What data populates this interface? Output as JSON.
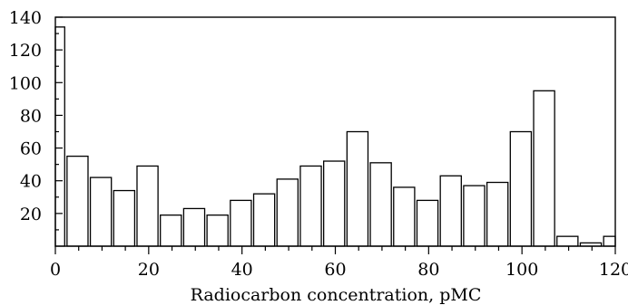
{
  "chart_data": {
    "type": "bar",
    "title": "",
    "xlabel": "Radiocarbon concentration, pMC",
    "ylabel": "",
    "xlim": [
      0,
      120
    ],
    "ylim": [
      0,
      140
    ],
    "grid": false,
    "bin_width": 5,
    "bins": [
      {
        "x0": 0,
        "x1": 2,
        "value": 134
      },
      {
        "x0": 2.5,
        "x1": 7,
        "value": 55
      },
      {
        "x0": 7.5,
        "x1": 12,
        "value": 42
      },
      {
        "x0": 12.5,
        "x1": 17,
        "value": 34
      },
      {
        "x0": 17.5,
        "x1": 22,
        "value": 49
      },
      {
        "x0": 22.5,
        "x1": 27,
        "value": 19
      },
      {
        "x0": 27.5,
        "x1": 32,
        "value": 23
      },
      {
        "x0": 32.5,
        "x1": 37,
        "value": 19
      },
      {
        "x0": 37.5,
        "x1": 42,
        "value": 28
      },
      {
        "x0": 42.5,
        "x1": 47,
        "value": 32
      },
      {
        "x0": 47.5,
        "x1": 52,
        "value": 41
      },
      {
        "x0": 52.5,
        "x1": 57,
        "value": 49
      },
      {
        "x0": 57.5,
        "x1": 62,
        "value": 52
      },
      {
        "x0": 62.5,
        "x1": 67,
        "value": 70
      },
      {
        "x0": 67.5,
        "x1": 72,
        "value": 51
      },
      {
        "x0": 72.5,
        "x1": 77,
        "value": 36
      },
      {
        "x0": 77.5,
        "x1": 82,
        "value": 28
      },
      {
        "x0": 82.5,
        "x1": 87,
        "value": 43
      },
      {
        "x0": 87.5,
        "x1": 92,
        "value": 37
      },
      {
        "x0": 92.5,
        "x1": 97,
        "value": 39
      },
      {
        "x0": 97.5,
        "x1": 102,
        "value": 70
      },
      {
        "x0": 102.5,
        "x1": 107,
        "value": 95
      },
      {
        "x0": 107.5,
        "x1": 112,
        "value": 6
      },
      {
        "x0": 112.5,
        "x1": 117,
        "value": 2
      },
      {
        "x0": 117.5,
        "x1": 120,
        "value": 6
      }
    ],
    "x_ticks": [
      "0",
      "20",
      "40",
      "60",
      "80",
      "100",
      "120"
    ],
    "y_ticks": [
      "20",
      "40",
      "60",
      "80",
      "100",
      "120",
      "140"
    ]
  }
}
